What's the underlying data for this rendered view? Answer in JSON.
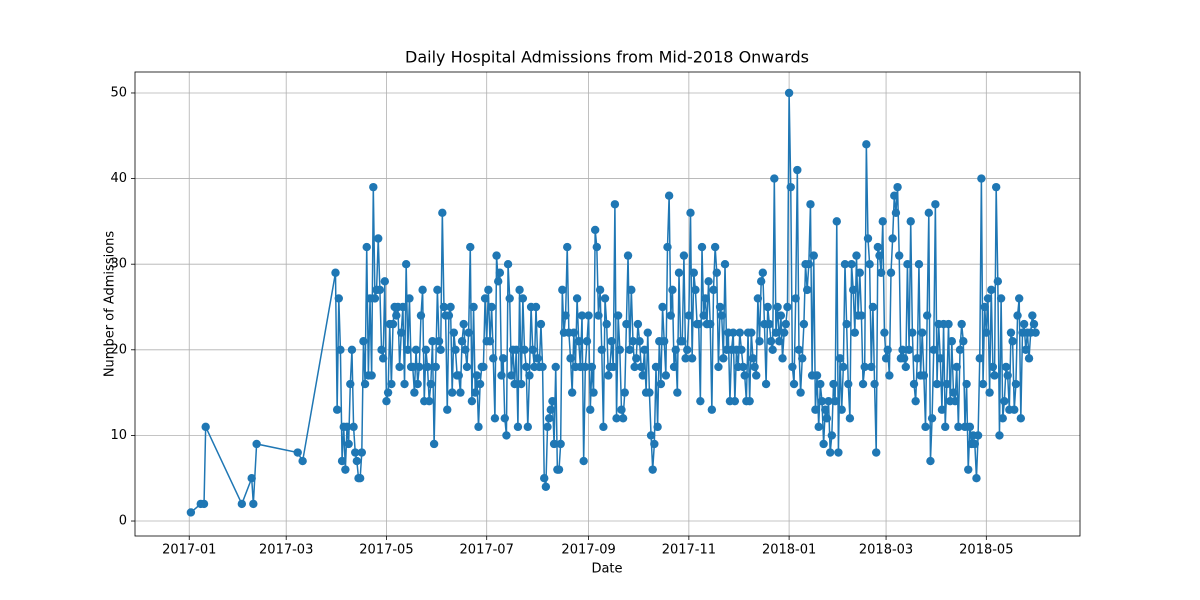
{
  "chart_data": {
    "type": "line",
    "title": "Daily Hospital Admissions from Mid-2018 Onwards",
    "x_label": "Date",
    "y_label": "Number of Admissions",
    "grid": true,
    "color": "#1f77b4",
    "xlim": [
      "2016-11-29",
      "2018-06-27"
    ],
    "ylim": [
      -1.75,
      52.45
    ],
    "xticks": [
      {
        "value": "2017-01-01",
        "label": "2017-01"
      },
      {
        "value": "2017-03-01",
        "label": "2017-03"
      },
      {
        "value": "2017-05-01",
        "label": "2017-05"
      },
      {
        "value": "2017-07-01",
        "label": "2017-07"
      },
      {
        "value": "2017-09-01",
        "label": "2017-09"
      },
      {
        "value": "2017-11-01",
        "label": "2017-11"
      },
      {
        "value": "2018-01-01",
        "label": "2018-01"
      },
      {
        "value": "2018-03-01",
        "label": "2018-03"
      },
      {
        "value": "2018-05-01",
        "label": "2018-05"
      }
    ],
    "yticks": [
      0,
      10,
      20,
      30,
      40,
      50
    ],
    "x": [
      "2017-01-02",
      "2017-01-08",
      "2017-01-10",
      "2017-01-11",
      "2017-02-02",
      "2017-02-08",
      "2017-02-09",
      "2017-02-11",
      "2017-03-08",
      "2017-03-11",
      "2017-03-31",
      "2017-04-01",
      "2017-04-02",
      "2017-04-03",
      "2017-04-04",
      "2017-04-05",
      "2017-04-06",
      "2017-04-07",
      "2017-04-08",
      "2017-04-09",
      "2017-04-10",
      "2017-04-11",
      "2017-04-12",
      "2017-04-13",
      "2017-04-14",
      "2017-04-15",
      "2017-04-16",
      "2017-04-17",
      "2017-04-18",
      "2017-04-19",
      "2017-04-20",
      "2017-04-21",
      "2017-04-22",
      "2017-04-23",
      "2017-04-24",
      "2017-04-25",
      "2017-04-26",
      "2017-04-27",
      "2017-04-28",
      "2017-04-29",
      "2017-04-30",
      "2017-05-01",
      "2017-05-02",
      "2017-05-03",
      "2017-05-04",
      "2017-05-05",
      "2017-05-06",
      "2017-05-07",
      "2017-05-08",
      "2017-05-09",
      "2017-05-10",
      "2017-05-11",
      "2017-05-12",
      "2017-05-13",
      "2017-05-14",
      "2017-05-15",
      "2017-05-16",
      "2017-05-17",
      "2017-05-18",
      "2017-05-19",
      "2017-05-20",
      "2017-05-21",
      "2017-05-22",
      "2017-05-23",
      "2017-05-24",
      "2017-05-25",
      "2017-05-26",
      "2017-05-27",
      "2017-05-28",
      "2017-05-29",
      "2017-05-30",
      "2017-05-31",
      "2017-06-01",
      "2017-06-02",
      "2017-06-03",
      "2017-06-04",
      "2017-06-05",
      "2017-06-06",
      "2017-06-07",
      "2017-06-08",
      "2017-06-09",
      "2017-06-10",
      "2017-06-11",
      "2017-06-12",
      "2017-06-13",
      "2017-06-14",
      "2017-06-15",
      "2017-06-16",
      "2017-06-17",
      "2017-06-18",
      "2017-06-19",
      "2017-06-20",
      "2017-06-21",
      "2017-06-22",
      "2017-06-23",
      "2017-06-24",
      "2017-06-25",
      "2017-06-26",
      "2017-06-27",
      "2017-06-28",
      "2017-06-29",
      "2017-06-30",
      "2017-07-01",
      "2017-07-02",
      "2017-07-03",
      "2017-07-04",
      "2017-07-05",
      "2017-07-06",
      "2017-07-07",
      "2017-07-08",
      "2017-07-09",
      "2017-07-10",
      "2017-07-11",
      "2017-07-12",
      "2017-07-13",
      "2017-07-14",
      "2017-07-15",
      "2017-07-16",
      "2017-07-17",
      "2017-07-18",
      "2017-07-19",
      "2017-07-20",
      "2017-07-21",
      "2017-07-22",
      "2017-07-23",
      "2017-07-24",
      "2017-07-25",
      "2017-07-26",
      "2017-07-27",
      "2017-07-28",
      "2017-07-29",
      "2017-07-30",
      "2017-07-31",
      "2017-08-01",
      "2017-08-02",
      "2017-08-03",
      "2017-08-04",
      "2017-08-05",
      "2017-08-06",
      "2017-08-07",
      "2017-08-08",
      "2017-08-09",
      "2017-08-10",
      "2017-08-11",
      "2017-08-12",
      "2017-08-13",
      "2017-08-14",
      "2017-08-15",
      "2017-08-16",
      "2017-08-17",
      "2017-08-18",
      "2017-08-19",
      "2017-08-20",
      "2017-08-21",
      "2017-08-22",
      "2017-08-23",
      "2017-08-24",
      "2017-08-25",
      "2017-08-26",
      "2017-08-27",
      "2017-08-28",
      "2017-08-29",
      "2017-08-30",
      "2017-08-31",
      "2017-09-01",
      "2017-09-02",
      "2017-09-03",
      "2017-09-04",
      "2017-09-05",
      "2017-09-06",
      "2017-09-07",
      "2017-09-08",
      "2017-09-09",
      "2017-09-10",
      "2017-09-11",
      "2017-09-12",
      "2017-09-13",
      "2017-09-14",
      "2017-09-15",
      "2017-09-16",
      "2017-09-17",
      "2017-09-18",
      "2017-09-19",
      "2017-09-20",
      "2017-09-21",
      "2017-09-22",
      "2017-09-23",
      "2017-09-24",
      "2017-09-25",
      "2017-09-26",
      "2017-09-27",
      "2017-09-28",
      "2017-09-29",
      "2017-09-30",
      "2017-10-01",
      "2017-10-02",
      "2017-10-03",
      "2017-10-04",
      "2017-10-05",
      "2017-10-06",
      "2017-10-07",
      "2017-10-08",
      "2017-10-09",
      "2017-10-10",
      "2017-10-11",
      "2017-10-12",
      "2017-10-13",
      "2017-10-14",
      "2017-10-15",
      "2017-10-16",
      "2017-10-17",
      "2017-10-18",
      "2017-10-19",
      "2017-10-20",
      "2017-10-21",
      "2017-10-22",
      "2017-10-23",
      "2017-10-24",
      "2017-10-25",
      "2017-10-26",
      "2017-10-27",
      "2017-10-28",
      "2017-10-29",
      "2017-10-30",
      "2017-10-31",
      "2017-11-01",
      "2017-11-02",
      "2017-11-03",
      "2017-11-04",
      "2017-11-05",
      "2017-11-06",
      "2017-11-07",
      "2017-11-08",
      "2017-11-09",
      "2017-11-10",
      "2017-11-11",
      "2017-11-12",
      "2017-11-13",
      "2017-11-14",
      "2017-11-15",
      "2017-11-16",
      "2017-11-17",
      "2017-11-18",
      "2017-11-19",
      "2017-11-20",
      "2017-11-21",
      "2017-11-22",
      "2017-11-23",
      "2017-11-24",
      "2017-11-25",
      "2017-11-26",
      "2017-11-27",
      "2017-11-28",
      "2017-11-29",
      "2017-11-30",
      "2017-12-01",
      "2017-12-02",
      "2017-12-03",
      "2017-12-04",
      "2017-12-05",
      "2017-12-06",
      "2017-12-07",
      "2017-12-08",
      "2017-12-09",
      "2017-12-10",
      "2017-12-11",
      "2017-12-12",
      "2017-12-13",
      "2017-12-14",
      "2017-12-15",
      "2017-12-16",
      "2017-12-17",
      "2017-12-18",
      "2017-12-19",
      "2017-12-20",
      "2017-12-21",
      "2017-12-22",
      "2017-12-23",
      "2017-12-24",
      "2017-12-25",
      "2017-12-26",
      "2017-12-27",
      "2017-12-28",
      "2017-12-29",
      "2017-12-30",
      "2017-12-31",
      "2018-01-01",
      "2018-01-02",
      "2018-01-03",
      "2018-01-04",
      "2018-01-05",
      "2018-01-06",
      "2018-01-07",
      "2018-01-08",
      "2018-01-09",
      "2018-01-10",
      "2018-01-11",
      "2018-01-12",
      "2018-01-13",
      "2018-01-14",
      "2018-01-15",
      "2018-01-16",
      "2018-01-17",
      "2018-01-18",
      "2018-01-19",
      "2018-01-20",
      "2018-01-21",
      "2018-01-22",
      "2018-01-23",
      "2018-01-24",
      "2018-01-25",
      "2018-01-26",
      "2018-01-27",
      "2018-01-28",
      "2018-01-29",
      "2018-01-30",
      "2018-01-31",
      "2018-02-01",
      "2018-02-02",
      "2018-02-03",
      "2018-02-04",
      "2018-02-05",
      "2018-02-06",
      "2018-02-07",
      "2018-02-08",
      "2018-02-09",
      "2018-02-10",
      "2018-02-11",
      "2018-02-12",
      "2018-02-13",
      "2018-02-14",
      "2018-02-15",
      "2018-02-16",
      "2018-02-17",
      "2018-02-18",
      "2018-02-19",
      "2018-02-20",
      "2018-02-21",
      "2018-02-22",
      "2018-02-23",
      "2018-02-24",
      "2018-02-25",
      "2018-02-26",
      "2018-02-27",
      "2018-02-28",
      "2018-03-01",
      "2018-03-02",
      "2018-03-03",
      "2018-03-04",
      "2018-03-05",
      "2018-03-06",
      "2018-03-07",
      "2018-03-08",
      "2018-03-09",
      "2018-03-10",
      "2018-03-11",
      "2018-03-12",
      "2018-03-13",
      "2018-03-14",
      "2018-03-15",
      "2018-03-16",
      "2018-03-17",
      "2018-03-18",
      "2018-03-19",
      "2018-03-20",
      "2018-03-21",
      "2018-03-22",
      "2018-03-23",
      "2018-03-24",
      "2018-03-25",
      "2018-03-26",
      "2018-03-27",
      "2018-03-28",
      "2018-03-29",
      "2018-03-30",
      "2018-03-31",
      "2018-04-01",
      "2018-04-02",
      "2018-04-03",
      "2018-04-04",
      "2018-04-05",
      "2018-04-06",
      "2018-04-07",
      "2018-04-08",
      "2018-04-09",
      "2018-04-10",
      "2018-04-11",
      "2018-04-12",
      "2018-04-13",
      "2018-04-14",
      "2018-04-15",
      "2018-04-16",
      "2018-04-17",
      "2018-04-18",
      "2018-04-19",
      "2018-04-20",
      "2018-04-21",
      "2018-04-22",
      "2018-04-23",
      "2018-04-24",
      "2018-04-25",
      "2018-04-26",
      "2018-04-27",
      "2018-04-28",
      "2018-04-29",
      "2018-04-30",
      "2018-05-01",
      "2018-05-02",
      "2018-05-03",
      "2018-05-04",
      "2018-05-05",
      "2018-05-06",
      "2018-05-07",
      "2018-05-08",
      "2018-05-09",
      "2018-05-10",
      "2018-05-11",
      "2018-05-12",
      "2018-05-13",
      "2018-05-14",
      "2018-05-15",
      "2018-05-16",
      "2018-05-17",
      "2018-05-18",
      "2018-05-19",
      "2018-05-20",
      "2018-05-21",
      "2018-05-22",
      "2018-05-23",
      "2018-05-24",
      "2018-05-25",
      "2018-05-26",
      "2018-05-27",
      "2018-05-28",
      "2018-05-29",
      "2018-05-30",
      "2018-05-31"
    ],
    "values": [
      1,
      2,
      2,
      11,
      2,
      5,
      2,
      9,
      8,
      7,
      29,
      13,
      26,
      20,
      7,
      11,
      6,
      11,
      9,
      16,
      20,
      11,
      8,
      7,
      5,
      5,
      8,
      21,
      16,
      32,
      17,
      26,
      17,
      39,
      26,
      27,
      33,
      27,
      20,
      19,
      28,
      14,
      15,
      23,
      16,
      23,
      25,
      24,
      25,
      18,
      22,
      25,
      16,
      30,
      20,
      26,
      18,
      18,
      15,
      20,
      16,
      18,
      24,
      27,
      14,
      20,
      18,
      14,
      16,
      21,
      9,
      18,
      27,
      21,
      20,
      36,
      25,
      24,
      13,
      24,
      25,
      15,
      22,
      20,
      17,
      17,
      15,
      21,
      23,
      20,
      18,
      22,
      32,
      14,
      25,
      15,
      17,
      11,
      16,
      18,
      18,
      26,
      21,
      27,
      21,
      25,
      19,
      12,
      31,
      28,
      29,
      17,
      19,
      12,
      10,
      30,
      26,
      17,
      20,
      16,
      20,
      11,
      27,
      16,
      26,
      20,
      18,
      11,
      17,
      25,
      20,
      18,
      25,
      19,
      18,
      23,
      18,
      5,
      4,
      11,
      12,
      13,
      14,
      9,
      18,
      6,
      6,
      9,
      27,
      22,
      24,
      32,
      22,
      19,
      15,
      22,
      18,
      26,
      21,
      18,
      24,
      7,
      18,
      21,
      24,
      13,
      18,
      15,
      34,
      32,
      24,
      27,
      20,
      11,
      26,
      23,
      17,
      18,
      21,
      18,
      37,
      12,
      24,
      20,
      13,
      12,
      15,
      23,
      31,
      20,
      27,
      21,
      18,
      19,
      23,
      21,
      18,
      17,
      20,
      15,
      22,
      15,
      10,
      6,
      9,
      18,
      11,
      21,
      16,
      25,
      21,
      17,
      32,
      38,
      24,
      27,
      18,
      20,
      15,
      29,
      21,
      21,
      31,
      19,
      20,
      24,
      36,
      19,
      29,
      27,
      23,
      23,
      14,
      32,
      24,
      26,
      23,
      28,
      23,
      13,
      27,
      32,
      29,
      18,
      25,
      24,
      19,
      30,
      20,
      22,
      14,
      20,
      22,
      14,
      20,
      18,
      22,
      20,
      18,
      17,
      14,
      22,
      14,
      22,
      19,
      18,
      17,
      26,
      21,
      28,
      29,
      23,
      16,
      25,
      23,
      21,
      20,
      40,
      22,
      25,
      21,
      24,
      19,
      22,
      23,
      25,
      50,
      39,
      18,
      16,
      26,
      41,
      20,
      15,
      19,
      23,
      30,
      27,
      30,
      37,
      17,
      31,
      13,
      17,
      11,
      16,
      14,
      9,
      13,
      12,
      14,
      8,
      10,
      16,
      14,
      35,
      8,
      19,
      13,
      18,
      30,
      23,
      16,
      12,
      30,
      27,
      22,
      31,
      24,
      29,
      24,
      16,
      18,
      44,
      33,
      30,
      18,
      25,
      16,
      8,
      32,
      31,
      29,
      35,
      22,
      19,
      20,
      17,
      29,
      33,
      38,
      36,
      39,
      31,
      19,
      20,
      19,
      18,
      30,
      20,
      35,
      22,
      16,
      14,
      19,
      30,
      17,
      22,
      17,
      11,
      24,
      36,
      7,
      12,
      20,
      37,
      16,
      23,
      19,
      13,
      23,
      11,
      16,
      23,
      14,
      21,
      15,
      14,
      18,
      11,
      20,
      23,
      21,
      11,
      16,
      6,
      11,
      9,
      10,
      9,
      5,
      10,
      19,
      40,
      16,
      25,
      22,
      26,
      15,
      27,
      18,
      17,
      39,
      28,
      10,
      26,
      12,
      14,
      18,
      17,
      13,
      22,
      21,
      13,
      16,
      24,
      26,
      12,
      22,
      23,
      20,
      22,
      19,
      22,
      24,
      23,
      22
    ]
  }
}
